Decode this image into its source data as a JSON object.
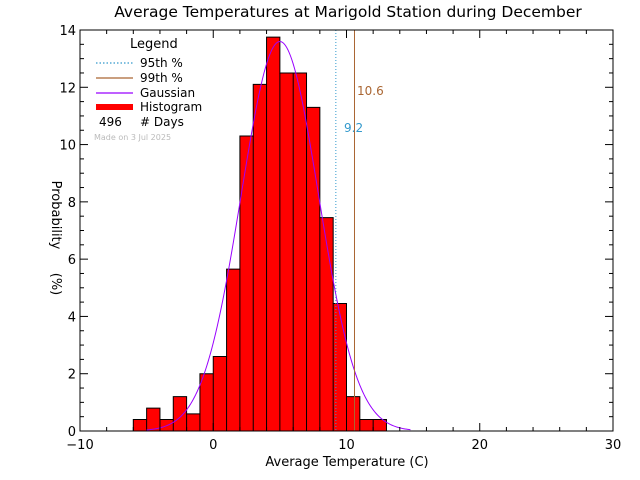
{
  "chart_data": {
    "type": "bar",
    "title": "Average Temperatures at Marigold Station during December",
    "xlabel": "Average Temperature (C)",
    "ylabel": "Probability (%)",
    "xlim": [
      -10,
      30
    ],
    "ylim": [
      0,
      14
    ],
    "x_ticks": [
      -10,
      0,
      10,
      20,
      30
    ],
    "y_ticks": [
      0,
      2,
      4,
      6,
      8,
      10,
      12,
      14
    ],
    "grid": false,
    "bin_width": 1,
    "histogram": {
      "bin_starts": [
        -6,
        -5,
        -4,
        -3,
        -2,
        -1,
        0,
        1,
        2,
        3,
        4,
        5,
        6,
        7,
        8,
        9,
        10,
        11,
        12
      ],
      "values": [
        0.4,
        0.8,
        0.4,
        1.2,
        0.6,
        2.0,
        2.6,
        5.65,
        10.3,
        12.1,
        13.75,
        12.5,
        12.5,
        11.3,
        7.45,
        4.45,
        1.2,
        0.4,
        0.4
      ],
      "color": "#ff0000"
    },
    "gaussian": {
      "mean": 5.0,
      "peak": 13.6,
      "sigma": 2.9,
      "color": "#9900ff"
    },
    "percentile_95": {
      "value": 9.2,
      "label": "9.2",
      "color": "#3399cc"
    },
    "percentile_99": {
      "value": 10.6,
      "label": "10.6",
      "color": "#aa6633"
    },
    "legend": {
      "position": "top-left",
      "title": "Legend",
      "entries": [
        {
          "label": "95th %",
          "style": "dotted",
          "color": "#3399cc"
        },
        {
          "label": "99th %",
          "style": "solid",
          "color": "#aa6633"
        },
        {
          "label": "Gaussian",
          "style": "solid",
          "color": "#9900ff"
        },
        {
          "label": "Histogram",
          "style": "thick",
          "color": "#ff0000"
        }
      ],
      "count_value": "496",
      "count_label": "# Days"
    },
    "watermark": "Made on 3 Jul 2025"
  }
}
